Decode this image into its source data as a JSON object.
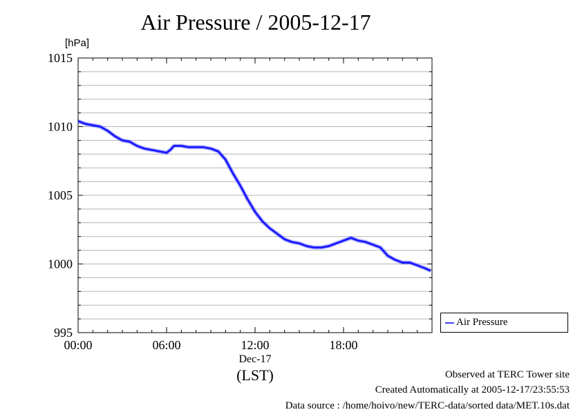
{
  "chart_data": {
    "type": "line",
    "title": "Air Pressure / 2005-12-17",
    "y_unit": "[hPa]",
    "ylim": [
      995,
      1015
    ],
    "y_ticks": [
      "995",
      "1000",
      "1005",
      "1010",
      "1015"
    ],
    "x_ticks": [
      "00:00",
      "06:00",
      "12:00",
      "18:00"
    ],
    "x_sublabel": "Dec-17",
    "xlabel": "(LST)",
    "grid": true,
    "legend_position": "right",
    "series": [
      {
        "name": "Air Pressure",
        "color": "#4040ff",
        "x": [
          "00:00",
          "00:30",
          "01:00",
          "01:30",
          "02:00",
          "02:30",
          "03:00",
          "03:30",
          "04:00",
          "04:30",
          "05:00",
          "05:30",
          "06:00",
          "06:15",
          "06:30",
          "07:00",
          "07:30",
          "08:00",
          "08:30",
          "09:00",
          "09:30",
          "10:00",
          "10:30",
          "11:00",
          "11:30",
          "12:00",
          "12:30",
          "13:00",
          "13:30",
          "14:00",
          "14:30",
          "15:00",
          "15:30",
          "16:00",
          "16:30",
          "17:00",
          "17:30",
          "18:00",
          "18:30",
          "19:00",
          "19:30",
          "20:00",
          "20:30",
          "21:00",
          "21:30",
          "22:00",
          "22:30",
          "23:00",
          "23:30",
          "23:55"
        ],
        "y": [
          1010.4,
          1010.2,
          1010.1,
          1010.0,
          1009.7,
          1009.3,
          1009.0,
          1008.9,
          1008.6,
          1008.4,
          1008.3,
          1008.2,
          1008.1,
          1008.3,
          1008.6,
          1008.6,
          1008.5,
          1008.5,
          1008.5,
          1008.4,
          1008.2,
          1007.6,
          1006.6,
          1005.7,
          1004.7,
          1003.8,
          1003.1,
          1002.6,
          1002.2,
          1001.8,
          1001.6,
          1001.5,
          1001.3,
          1001.2,
          1001.2,
          1001.3,
          1001.5,
          1001.7,
          1001.9,
          1001.7,
          1001.6,
          1001.4,
          1001.2,
          1000.6,
          1000.3,
          1000.1,
          1000.1,
          999.9,
          999.7,
          999.5
        ]
      }
    ]
  },
  "footer": {
    "site": "Observed at TERC Tower site",
    "created": "Created Automatically at 2005-12-17/23:55:53",
    "source": "Data source : /home/hoivo/new/TERC-data/sorted  data/MET.10s.dat"
  }
}
